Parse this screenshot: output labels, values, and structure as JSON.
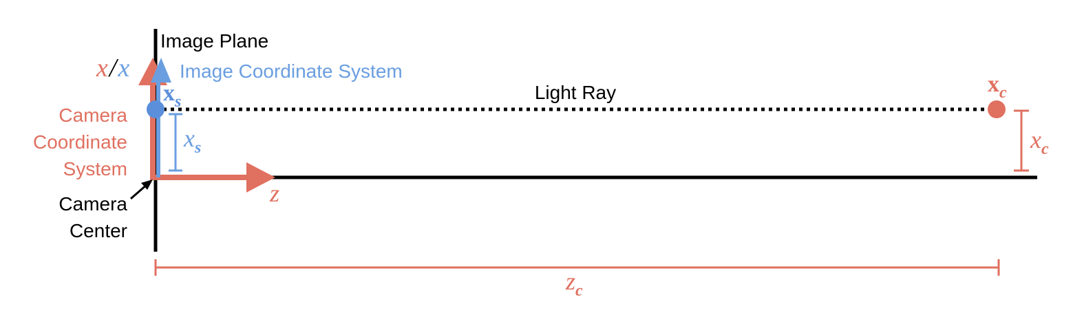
{
  "colors": {
    "camera": "#e07060",
    "image": "#6a9ee0",
    "image_point": "#5b8fdb",
    "ink": "#000000",
    "background": "#ffffff"
  },
  "labels": {
    "image_plane": "Image Plane",
    "image_coordinate_system": "Image Coordinate System",
    "light_ray": "Light Ray",
    "camera_coordinate_system": [
      "Camera",
      "Coordinate",
      "System"
    ],
    "camera_center": [
      "Camera",
      "Center"
    ]
  },
  "math": {
    "axis_x_camera": "x",
    "axis_separator": "/",
    "axis_x_image": "x",
    "axis_z": "z",
    "point_image_base": "x",
    "point_image_sub": "s",
    "point_camera_base": "x",
    "point_camera_sub": "c",
    "height_image_base": "x",
    "height_image_sub": "s",
    "height_camera_base": "x",
    "height_camera_sub": "c",
    "depth_base": "z",
    "depth_sub": "c"
  }
}
